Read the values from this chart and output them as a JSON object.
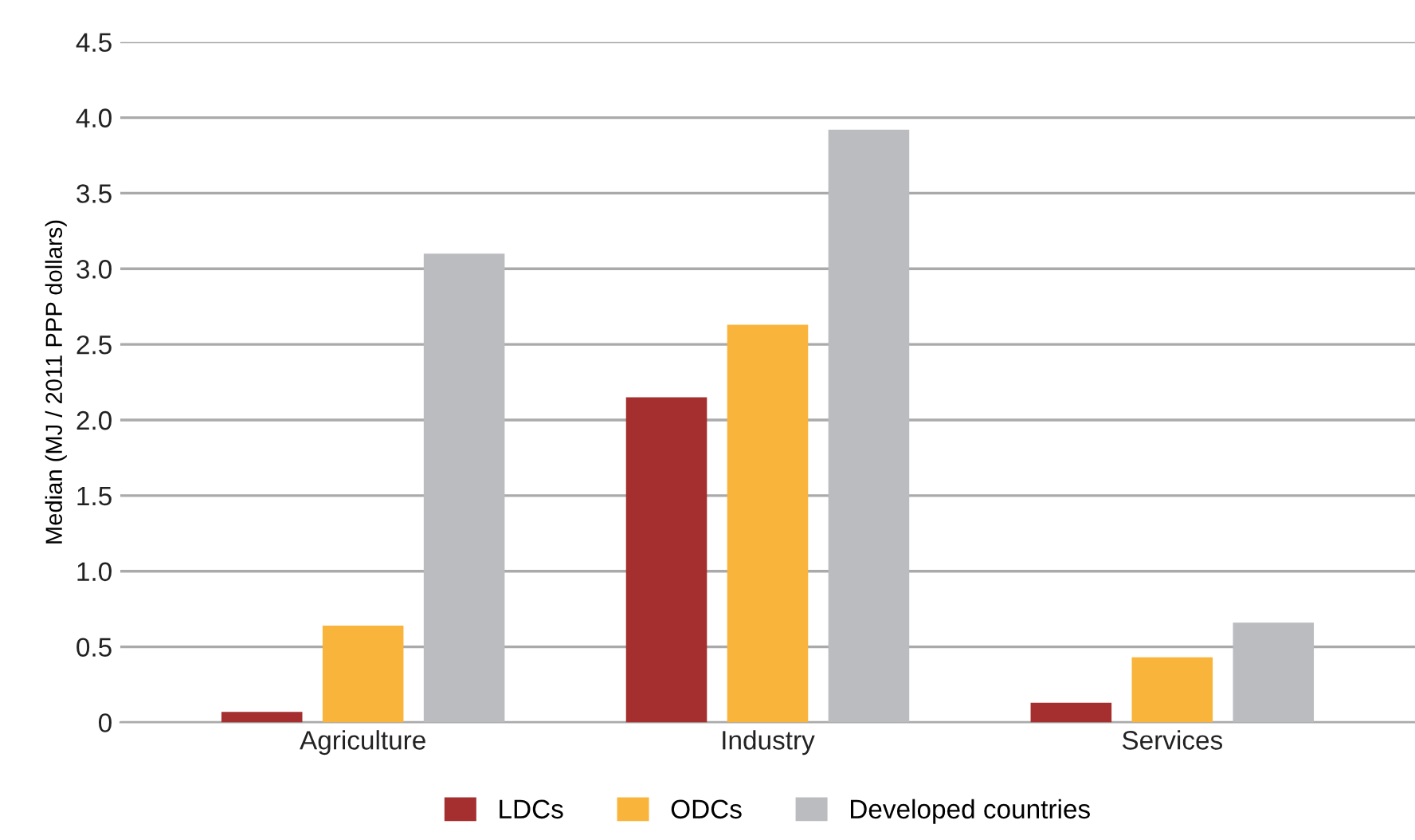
{
  "chart_data": {
    "type": "bar",
    "ylabel": "Median (MJ / 2011 PPP dollars)",
    "categories": [
      "Agriculture",
      "Industry",
      "Services"
    ],
    "series": [
      {
        "name": "LDCs",
        "color": "#a52e2e",
        "values": [
          0.07,
          2.15,
          0.13
        ]
      },
      {
        "name": "ODCs",
        "color": "#f9b43b",
        "values": [
          0.64,
          2.63,
          0.43
        ]
      },
      {
        "name": "Developed countries",
        "color": "#bbbcc0",
        "values": [
          3.1,
          3.92,
          0.66
        ]
      }
    ],
    "ylim": [
      0,
      4.5
    ],
    "yticks": [
      {
        "value": 0,
        "label": "0"
      },
      0.5,
      {
        "value": 1,
        "label": "1.0"
      },
      1.5,
      {
        "value": 2,
        "label": "2.0"
      },
      2.5,
      {
        "value": 3,
        "label": "3.0"
      },
      3.5,
      {
        "value": 4,
        "label": "4.0"
      },
      4.5
    ],
    "grid": "y",
    "legend": "bottom"
  }
}
